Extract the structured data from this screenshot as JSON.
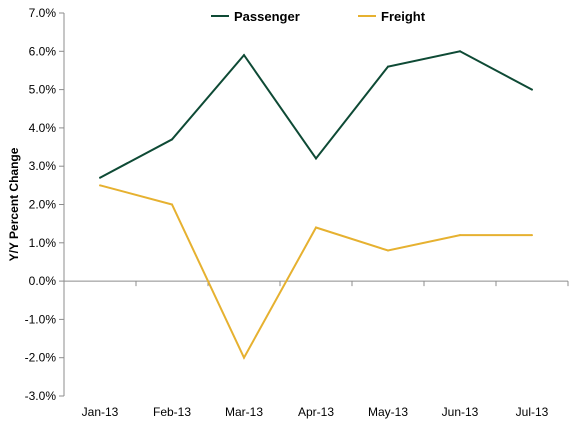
{
  "chart_data": {
    "type": "line",
    "title": "",
    "xlabel": "",
    "ylabel": "Y/Y Percent Change",
    "categories": [
      "Jan-13",
      "Feb-13",
      "Mar-13",
      "Apr-13",
      "May-13",
      "Jun-13",
      "Jul-13"
    ],
    "ylim": [
      -3.0,
      7.0
    ],
    "ytick_step": 1.0,
    "y_tick_labels": [
      "-3.0%",
      "-2.0%",
      "-1.0%",
      "0.0%",
      "1.0%",
      "2.0%",
      "3.0%",
      "4.0%",
      "5.0%",
      "6.0%",
      "7.0%"
    ],
    "grid": false,
    "legend_position": "top-center",
    "series": [
      {
        "name": "Passenger",
        "color": "#0e4a35",
        "values": [
          2.7,
          3.7,
          5.9,
          3.2,
          5.6,
          6.0,
          5.0
        ]
      },
      {
        "name": "Freight",
        "color": "#e6b130",
        "values": [
          2.5,
          2.0,
          -2.0,
          1.4,
          0.8,
          1.2,
          1.2
        ]
      }
    ]
  }
}
